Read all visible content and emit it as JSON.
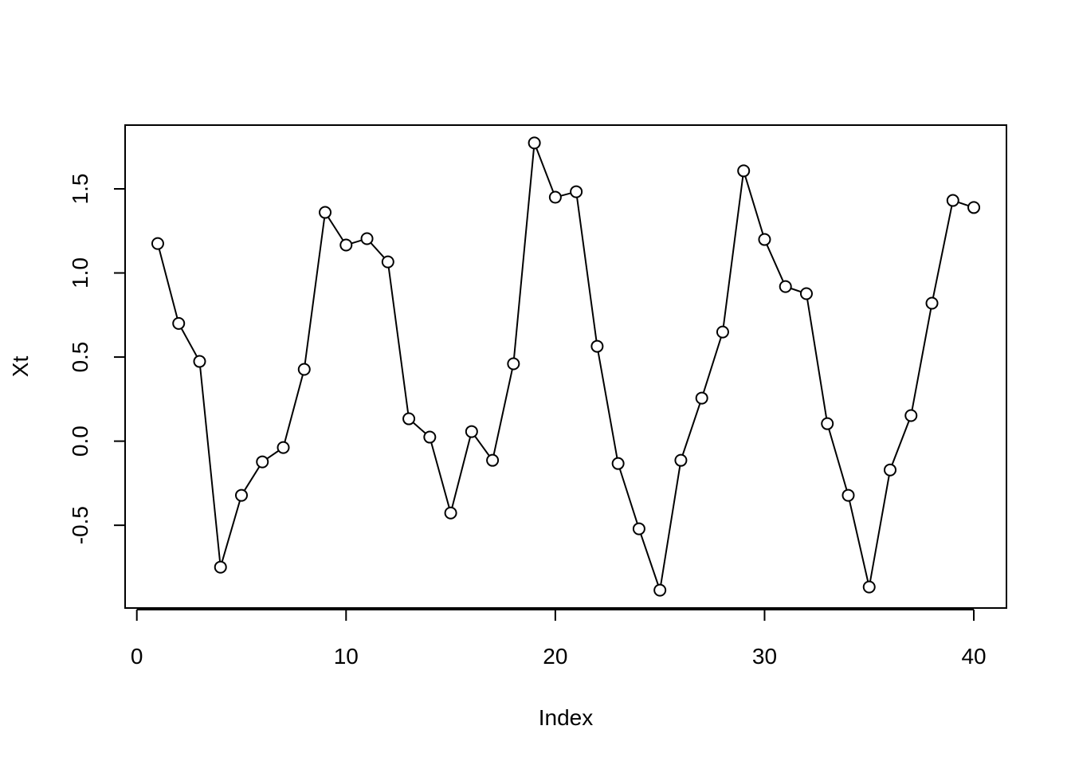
{
  "chart_data": {
    "type": "line",
    "xlabel": "Index",
    "ylabel": "Xt",
    "x": [
      1,
      2,
      3,
      4,
      5,
      6,
      7,
      8,
      9,
      10,
      11,
      12,
      13,
      14,
      15,
      16,
      17,
      18,
      19,
      20,
      21,
      22,
      23,
      24,
      25,
      26,
      27,
      28,
      29,
      30,
      31,
      32,
      33,
      34,
      35,
      36,
      37,
      38,
      39,
      40
    ],
    "values": [
      1.175,
      0.7,
      0.474,
      -0.749,
      -0.322,
      -0.123,
      -0.038,
      0.427,
      1.36,
      1.166,
      1.204,
      1.066,
      0.133,
      0.024,
      -0.427,
      0.057,
      -0.114,
      0.46,
      1.773,
      1.45,
      1.483,
      0.564,
      -0.133,
      -0.521,
      -0.886,
      -0.114,
      0.256,
      0.649,
      1.607,
      1.199,
      0.919,
      0.877,
      0.104,
      -0.322,
      -0.867,
      -0.171,
      0.152,
      0.82,
      1.431,
      1.389
    ],
    "color": "#000000",
    "markers": true,
    "xlim": [
      -0.56,
      41.56
    ],
    "xticks": [
      0,
      10,
      20,
      30,
      40
    ],
    "ylim": [
      -0.992,
      1.879
    ],
    "yticks": [
      -0.5,
      {
        "value": 0,
        "label": "0.0"
      },
      0.5,
      {
        "value": 1,
        "label": "1.0"
      },
      1.5
    ],
    "grid": false
  }
}
